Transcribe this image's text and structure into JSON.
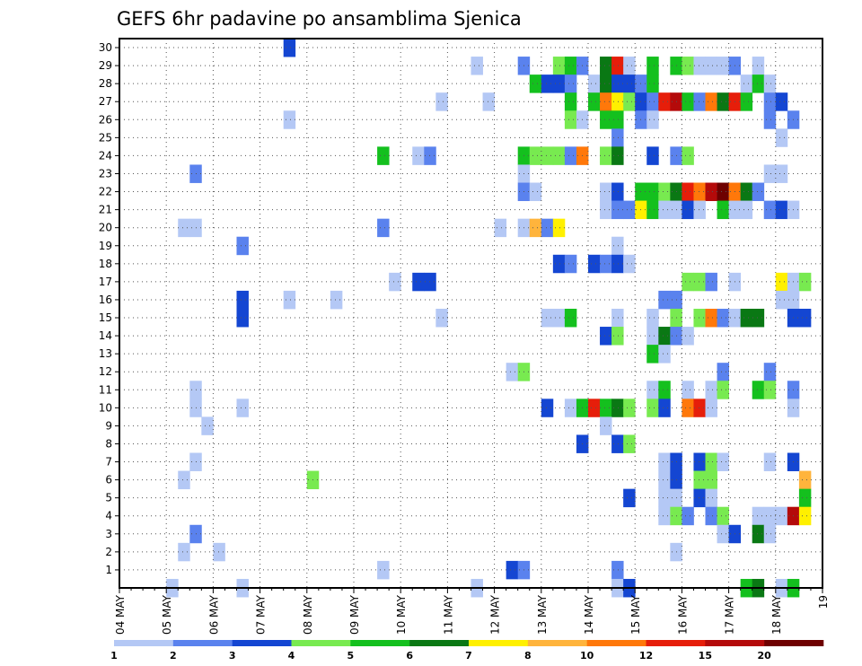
{
  "chart_data": {
    "type": "heatmap",
    "title": "GEFS 6hr padavine po ansamblima Sjenica",
    "xlabel": "",
    "ylabel": "",
    "x_ticks": [
      "04 MAY",
      "05 MAY",
      "06 MAY",
      "07 MAY",
      "08 MAY",
      "09 MAY",
      "10 MAY",
      "11 MAY",
      "12 MAY",
      "13 MAY",
      "14 MAY",
      "15 MAY",
      "16 MAY",
      "17 MAY",
      "18 MAY",
      "19"
    ],
    "x_range": [
      "04 MAY 00Z",
      "19 MAY 00Z"
    ],
    "y_ticks": [
      1,
      2,
      3,
      4,
      5,
      6,
      7,
      8,
      9,
      10,
      11,
      12,
      13,
      14,
      15,
      16,
      17,
      18,
      19,
      20,
      21,
      22,
      23,
      24,
      25,
      26,
      27,
      28,
      29,
      30
    ],
    "y_range": [
      0,
      30
    ],
    "grid": "dotted",
    "colorbar": {
      "levels": [
        1,
        2,
        3,
        4,
        5,
        6,
        7,
        8,
        10,
        12,
        15,
        20
      ],
      "colors": [
        "#b4c8f5",
        "#5a82ee",
        "#1446d2",
        "#78ea50",
        "#14c01e",
        "#0a7814",
        "#fff000",
        "#ffb43c",
        "#ff780a",
        "#e61e0a",
        "#b40a0a",
        "#6e0000"
      ]
    },
    "cells_note": "t = 6-hour step index from 04 MAY 00Z (0..59); member = ensemble member (0..30); c = color class index into colorbar levels",
    "cells": [
      {
        "member": 30,
        "t": 14,
        "c": 2
      },
      {
        "member": 29,
        "t": 30,
        "c": 0
      },
      {
        "member": 29,
        "t": 34,
        "c": 1
      },
      {
        "member": 29,
        "t": 37,
        "c": 3
      },
      {
        "member": 29,
        "t": 38,
        "c": 4
      },
      {
        "member": 29,
        "t": 39,
        "c": 1
      },
      {
        "member": 29,
        "t": 41,
        "c": 5
      },
      {
        "member": 29,
        "t": 42,
        "c": 9
      },
      {
        "member": 29,
        "t": 43,
        "c": 0
      },
      {
        "member": 29,
        "t": 45,
        "c": 4
      },
      {
        "member": 29,
        "t": 47,
        "c": 4
      },
      {
        "member": 29,
        "t": 48,
        "c": 3
      },
      {
        "member": 29,
        "t": 49,
        "c": 0
      },
      {
        "member": 29,
        "t": 50,
        "c": 0
      },
      {
        "member": 29,
        "t": 51,
        "c": 0
      },
      {
        "member": 29,
        "t": 52,
        "c": 1
      },
      {
        "member": 29,
        "t": 54,
        "c": 0
      },
      {
        "member": 28,
        "t": 35,
        "c": 4
      },
      {
        "member": 28,
        "t": 36,
        "c": 2
      },
      {
        "member": 28,
        "t": 37,
        "c": 2
      },
      {
        "member": 28,
        "t": 38,
        "c": 1
      },
      {
        "member": 28,
        "t": 40,
        "c": 0
      },
      {
        "member": 28,
        "t": 41,
        "c": 5
      },
      {
        "member": 28,
        "t": 42,
        "c": 2
      },
      {
        "member": 28,
        "t": 43,
        "c": 2
      },
      {
        "member": 28,
        "t": 44,
        "c": 1
      },
      {
        "member": 28,
        "t": 45,
        "c": 4
      },
      {
        "member": 28,
        "t": 53,
        "c": 0
      },
      {
        "member": 28,
        "t": 54,
        "c": 4
      },
      {
        "member": 28,
        "t": 55,
        "c": 0
      },
      {
        "member": 27,
        "t": 27,
        "c": 0
      },
      {
        "member": 27,
        "t": 31,
        "c": 0
      },
      {
        "member": 27,
        "t": 38,
        "c": 4
      },
      {
        "member": 27,
        "t": 40,
        "c": 4
      },
      {
        "member": 27,
        "t": 41,
        "c": 8
      },
      {
        "member": 27,
        "t": 42,
        "c": 6
      },
      {
        "member": 27,
        "t": 43,
        "c": 3
      },
      {
        "member": 27,
        "t": 44,
        "c": 2
      },
      {
        "member": 27,
        "t": 45,
        "c": 1
      },
      {
        "member": 27,
        "t": 46,
        "c": 9
      },
      {
        "member": 27,
        "t": 47,
        "c": 10
      },
      {
        "member": 27,
        "t": 48,
        "c": 4
      },
      {
        "member": 27,
        "t": 49,
        "c": 1
      },
      {
        "member": 27,
        "t": 50,
        "c": 8
      },
      {
        "member": 27,
        "t": 51,
        "c": 5
      },
      {
        "member": 27,
        "t": 52,
        "c": 9
      },
      {
        "member": 27,
        "t": 53,
        "c": 4
      },
      {
        "member": 27,
        "t": 55,
        "c": 1
      },
      {
        "member": 27,
        "t": 56,
        "c": 2
      },
      {
        "member": 26,
        "t": 14,
        "c": 0
      },
      {
        "member": 26,
        "t": 38,
        "c": 3
      },
      {
        "member": 26,
        "t": 39,
        "c": 0
      },
      {
        "member": 26,
        "t": 41,
        "c": 4
      },
      {
        "member": 26,
        "t": 42,
        "c": 4
      },
      {
        "member": 26,
        "t": 44,
        "c": 1
      },
      {
        "member": 26,
        "t": 45,
        "c": 0
      },
      {
        "member": 26,
        "t": 55,
        "c": 1
      },
      {
        "member": 26,
        "t": 57,
        "c": 1
      },
      {
        "member": 25,
        "t": 42,
        "c": 1
      },
      {
        "member": 25,
        "t": 56,
        "c": 0
      },
      {
        "member": 24,
        "t": 22,
        "c": 4
      },
      {
        "member": 24,
        "t": 25,
        "c": 0
      },
      {
        "member": 24,
        "t": 26,
        "c": 1
      },
      {
        "member": 24,
        "t": 34,
        "c": 4
      },
      {
        "member": 24,
        "t": 35,
        "c": 3
      },
      {
        "member": 24,
        "t": 36,
        "c": 3
      },
      {
        "member": 24,
        "t": 37,
        "c": 3
      },
      {
        "member": 24,
        "t": 38,
        "c": 1
      },
      {
        "member": 24,
        "t": 39,
        "c": 8
      },
      {
        "member": 24,
        "t": 41,
        "c": 3
      },
      {
        "member": 24,
        "t": 42,
        "c": 5
      },
      {
        "member": 24,
        "t": 45,
        "c": 2
      },
      {
        "member": 24,
        "t": 47,
        "c": 1
      },
      {
        "member": 24,
        "t": 48,
        "c": 3
      },
      {
        "member": 23,
        "t": 6,
        "c": 1
      },
      {
        "member": 23,
        "t": 34,
        "c": 0
      },
      {
        "member": 23,
        "t": 55,
        "c": 0
      },
      {
        "member": 23,
        "t": 56,
        "c": 0
      },
      {
        "member": 22,
        "t": 34,
        "c": 1
      },
      {
        "member": 22,
        "t": 35,
        "c": 0
      },
      {
        "member": 22,
        "t": 41,
        "c": 0
      },
      {
        "member": 22,
        "t": 42,
        "c": 2
      },
      {
        "member": 22,
        "t": 44,
        "c": 4
      },
      {
        "member": 22,
        "t": 45,
        "c": 4
      },
      {
        "member": 22,
        "t": 46,
        "c": 3
      },
      {
        "member": 22,
        "t": 47,
        "c": 5
      },
      {
        "member": 22,
        "t": 48,
        "c": 9
      },
      {
        "member": 22,
        "t": 49,
        "c": 8
      },
      {
        "member": 22,
        "t": 50,
        "c": 10
      },
      {
        "member": 22,
        "t": 51,
        "c": 11
      },
      {
        "member": 22,
        "t": 52,
        "c": 8
      },
      {
        "member": 22,
        "t": 53,
        "c": 5
      },
      {
        "member": 22,
        "t": 54,
        "c": 1
      },
      {
        "member": 21,
        "t": 41,
        "c": 0
      },
      {
        "member": 21,
        "t": 42,
        "c": 1
      },
      {
        "member": 21,
        "t": 43,
        "c": 1
      },
      {
        "member": 21,
        "t": 44,
        "c": 6
      },
      {
        "member": 21,
        "t": 45,
        "c": 4
      },
      {
        "member": 21,
        "t": 46,
        "c": 0
      },
      {
        "member": 21,
        "t": 47,
        "c": 0
      },
      {
        "member": 21,
        "t": 48,
        "c": 2
      },
      {
        "member": 21,
        "t": 49,
        "c": 0
      },
      {
        "member": 21,
        "t": 51,
        "c": 4
      },
      {
        "member": 21,
        "t": 52,
        "c": 0
      },
      {
        "member": 21,
        "t": 53,
        "c": 0
      },
      {
        "member": 21,
        "t": 55,
        "c": 1
      },
      {
        "member": 21,
        "t": 56,
        "c": 2
      },
      {
        "member": 21,
        "t": 57,
        "c": 0
      },
      {
        "member": 20,
        "t": 5,
        "c": 0
      },
      {
        "member": 20,
        "t": 6,
        "c": 0
      },
      {
        "member": 20,
        "t": 22,
        "c": 1
      },
      {
        "member": 20,
        "t": 32,
        "c": 0
      },
      {
        "member": 20,
        "t": 34,
        "c": 0
      },
      {
        "member": 20,
        "t": 35,
        "c": 7
      },
      {
        "member": 20,
        "t": 36,
        "c": 1
      },
      {
        "member": 20,
        "t": 37,
        "c": 6
      },
      {
        "member": 19,
        "t": 10,
        "c": 1
      },
      {
        "member": 19,
        "t": 42,
        "c": 0
      },
      {
        "member": 18,
        "t": 37,
        "c": 2
      },
      {
        "member": 18,
        "t": 38,
        "c": 1
      },
      {
        "member": 18,
        "t": 40,
        "c": 2
      },
      {
        "member": 18,
        "t": 41,
        "c": 1
      },
      {
        "member": 18,
        "t": 42,
        "c": 2
      },
      {
        "member": 18,
        "t": 43,
        "c": 0
      },
      {
        "member": 17,
        "t": 23,
        "c": 0
      },
      {
        "member": 17,
        "t": 25,
        "c": 2
      },
      {
        "member": 17,
        "t": 26,
        "c": 2
      },
      {
        "member": 17,
        "t": 48,
        "c": 3
      },
      {
        "member": 17,
        "t": 49,
        "c": 3
      },
      {
        "member": 17,
        "t": 50,
        "c": 1
      },
      {
        "member": 17,
        "t": 52,
        "c": 0
      },
      {
        "member": 17,
        "t": 56,
        "c": 6
      },
      {
        "member": 17,
        "t": 57,
        "c": 0
      },
      {
        "member": 17,
        "t": 58,
        "c": 3
      },
      {
        "member": 16,
        "t": 10,
        "c": 2
      },
      {
        "member": 16,
        "t": 14,
        "c": 0
      },
      {
        "member": 16,
        "t": 18,
        "c": 0
      },
      {
        "member": 16,
        "t": 46,
        "c": 1
      },
      {
        "member": 16,
        "t": 47,
        "c": 1
      },
      {
        "member": 16,
        "t": 56,
        "c": 0
      },
      {
        "member": 16,
        "t": 57,
        "c": 0
      },
      {
        "member": 15,
        "t": 10,
        "c": 2
      },
      {
        "member": 15,
        "t": 27,
        "c": 0
      },
      {
        "member": 15,
        "t": 36,
        "c": 0
      },
      {
        "member": 15,
        "t": 37,
        "c": 0
      },
      {
        "member": 15,
        "t": 38,
        "c": 4
      },
      {
        "member": 15,
        "t": 42,
        "c": 0
      },
      {
        "member": 15,
        "t": 45,
        "c": 0
      },
      {
        "member": 15,
        "t": 47,
        "c": 3
      },
      {
        "member": 15,
        "t": 49,
        "c": 3
      },
      {
        "member": 15,
        "t": 50,
        "c": 8
      },
      {
        "member": 15,
        "t": 51,
        "c": 1
      },
      {
        "member": 15,
        "t": 52,
        "c": 0
      },
      {
        "member": 15,
        "t": 53,
        "c": 5
      },
      {
        "member": 15,
        "t": 54,
        "c": 5
      },
      {
        "member": 15,
        "t": 57,
        "c": 2
      },
      {
        "member": 15,
        "t": 58,
        "c": 2
      },
      {
        "member": 14,
        "t": 41,
        "c": 2
      },
      {
        "member": 14,
        "t": 42,
        "c": 3
      },
      {
        "member": 14,
        "t": 45,
        "c": 0
      },
      {
        "member": 14,
        "t": 46,
        "c": 5
      },
      {
        "member": 14,
        "t": 47,
        "c": 1
      },
      {
        "member": 14,
        "t": 48,
        "c": 0
      },
      {
        "member": 13,
        "t": 45,
        "c": 4
      },
      {
        "member": 13,
        "t": 46,
        "c": 0
      },
      {
        "member": 12,
        "t": 33,
        "c": 0
      },
      {
        "member": 12,
        "t": 34,
        "c": 3
      },
      {
        "member": 12,
        "t": 51,
        "c": 1
      },
      {
        "member": 12,
        "t": 55,
        "c": 1
      },
      {
        "member": 11,
        "t": 6,
        "c": 0
      },
      {
        "member": 11,
        "t": 45,
        "c": 0
      },
      {
        "member": 11,
        "t": 46,
        "c": 4
      },
      {
        "member": 11,
        "t": 48,
        "c": 0
      },
      {
        "member": 11,
        "t": 50,
        "c": 0
      },
      {
        "member": 11,
        "t": 51,
        "c": 3
      },
      {
        "member": 11,
        "t": 54,
        "c": 4
      },
      {
        "member": 11,
        "t": 55,
        "c": 3
      },
      {
        "member": 11,
        "t": 57,
        "c": 1
      },
      {
        "member": 10,
        "t": 6,
        "c": 0
      },
      {
        "member": 10,
        "t": 10,
        "c": 0
      },
      {
        "member": 10,
        "t": 36,
        "c": 2
      },
      {
        "member": 10,
        "t": 38,
        "c": 0
      },
      {
        "member": 10,
        "t": 39,
        "c": 4
      },
      {
        "member": 10,
        "t": 40,
        "c": 9
      },
      {
        "member": 10,
        "t": 41,
        "c": 4
      },
      {
        "member": 10,
        "t": 42,
        "c": 5
      },
      {
        "member": 10,
        "t": 43,
        "c": 3
      },
      {
        "member": 10,
        "t": 45,
        "c": 3
      },
      {
        "member": 10,
        "t": 46,
        "c": 2
      },
      {
        "member": 10,
        "t": 48,
        "c": 8
      },
      {
        "member": 10,
        "t": 49,
        "c": 9
      },
      {
        "member": 10,
        "t": 50,
        "c": 0
      },
      {
        "member": 10,
        "t": 57,
        "c": 0
      },
      {
        "member": 9,
        "t": 7,
        "c": 0
      },
      {
        "member": 9,
        "t": 41,
        "c": 0
      },
      {
        "member": 8,
        "t": 39,
        "c": 2
      },
      {
        "member": 8,
        "t": 42,
        "c": 2
      },
      {
        "member": 8,
        "t": 43,
        "c": 3
      },
      {
        "member": 7,
        "t": 6,
        "c": 0
      },
      {
        "member": 7,
        "t": 46,
        "c": 0
      },
      {
        "member": 7,
        "t": 47,
        "c": 2
      },
      {
        "member": 7,
        "t": 49,
        "c": 2
      },
      {
        "member": 7,
        "t": 50,
        "c": 3
      },
      {
        "member": 7,
        "t": 51,
        "c": 0
      },
      {
        "member": 7,
        "t": 55,
        "c": 0
      },
      {
        "member": 7,
        "t": 57,
        "c": 2
      },
      {
        "member": 6,
        "t": 5,
        "c": 0
      },
      {
        "member": 6,
        "t": 16,
        "c": 3
      },
      {
        "member": 6,
        "t": 46,
        "c": 0
      },
      {
        "member": 6,
        "t": 47,
        "c": 2
      },
      {
        "member": 6,
        "t": 49,
        "c": 3
      },
      {
        "member": 6,
        "t": 50,
        "c": 3
      },
      {
        "member": 6,
        "t": 58,
        "c": 7
      },
      {
        "member": 5,
        "t": 43,
        "c": 2
      },
      {
        "member": 5,
        "t": 46,
        "c": 0
      },
      {
        "member": 5,
        "t": 47,
        "c": 0
      },
      {
        "member": 5,
        "t": 49,
        "c": 2
      },
      {
        "member": 5,
        "t": 50,
        "c": 0
      },
      {
        "member": 5,
        "t": 58,
        "c": 4
      },
      {
        "member": 4,
        "t": 46,
        "c": 0
      },
      {
        "member": 4,
        "t": 47,
        "c": 3
      },
      {
        "member": 4,
        "t": 48,
        "c": 1
      },
      {
        "member": 4,
        "t": 50,
        "c": 1
      },
      {
        "member": 4,
        "t": 51,
        "c": 3
      },
      {
        "member": 4,
        "t": 54,
        "c": 0
      },
      {
        "member": 4,
        "t": 55,
        "c": 0
      },
      {
        "member": 4,
        "t": 56,
        "c": 0
      },
      {
        "member": 4,
        "t": 57,
        "c": 10
      },
      {
        "member": 4,
        "t": 58,
        "c": 6
      },
      {
        "member": 3,
        "t": 6,
        "c": 1
      },
      {
        "member": 3,
        "t": 51,
        "c": 0
      },
      {
        "member": 3,
        "t": 52,
        "c": 2
      },
      {
        "member": 3,
        "t": 54,
        "c": 5
      },
      {
        "member": 3,
        "t": 55,
        "c": 0
      },
      {
        "member": 2,
        "t": 5,
        "c": 0
      },
      {
        "member": 2,
        "t": 8,
        "c": 0
      },
      {
        "member": 2,
        "t": 47,
        "c": 0
      },
      {
        "member": 1,
        "t": 22,
        "c": 0
      },
      {
        "member": 1,
        "t": 33,
        "c": 2
      },
      {
        "member": 1,
        "t": 34,
        "c": 1
      },
      {
        "member": 1,
        "t": 42,
        "c": 1
      },
      {
        "member": 0,
        "t": 4,
        "c": 0
      },
      {
        "member": 0,
        "t": 10,
        "c": 0
      },
      {
        "member": 0,
        "t": 30,
        "c": 0
      },
      {
        "member": 0,
        "t": 42,
        "c": 0
      },
      {
        "member": 0,
        "t": 43,
        "c": 2
      },
      {
        "member": 0,
        "t": 53,
        "c": 4
      },
      {
        "member": 0,
        "t": 54,
        "c": 5
      },
      {
        "member": 0,
        "t": 56,
        "c": 0
      },
      {
        "member": 0,
        "t": 57,
        "c": 4
      }
    ]
  }
}
